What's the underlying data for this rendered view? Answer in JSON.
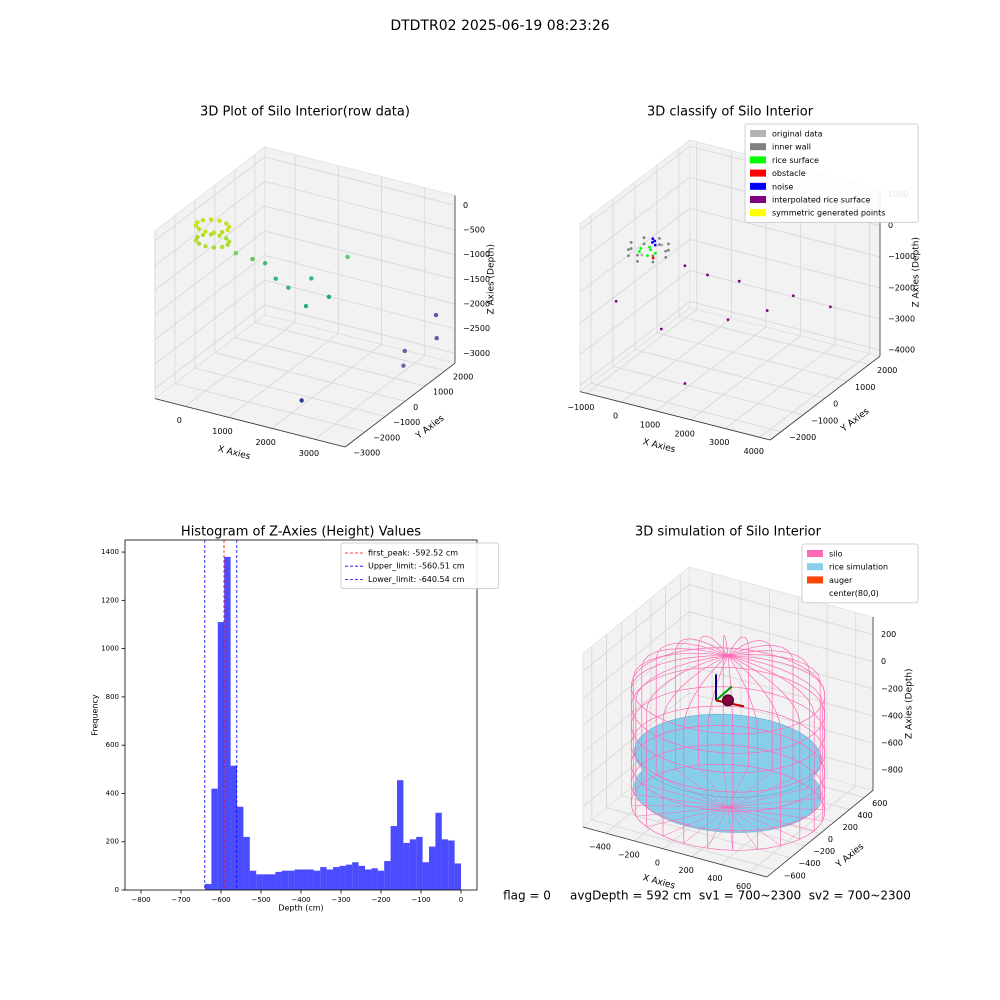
{
  "title": "DTDTR02 2025-06-19 08:23:26",
  "footer": "flag = 0     avgDepth = 592 cm  sv1 = 700~2300  sv2 = 700~2300",
  "chart_data": [
    {
      "type": "scatter3d",
      "title": "3D Plot of Silo Interior(row data)",
      "xlabel": "X Axies",
      "ylabel": "Y Axies",
      "zlabel": "Z Axies (Depth)",
      "xlim": [
        -700,
        3700
      ],
      "ylim": [
        -3000,
        2500
      ],
      "zlim": [
        -3200,
        200
      ],
      "xticks": [
        0,
        1000,
        2000,
        3000
      ],
      "yticks": [
        {
          "value": -3000,
          "label": "−3000"
        },
        {
          "value": -2000,
          "label": "−2000"
        },
        {
          "value": -1000,
          "label": "−1000"
        },
        0,
        1000,
        2000
      ],
      "zticks": [
        {
          "value": -3000,
          "label": "−3000"
        },
        {
          "value": -2500,
          "label": "−2500"
        },
        {
          "value": -2000,
          "label": "−2000"
        },
        {
          "value": -1500,
          "label": "−1500"
        },
        {
          "value": -1000,
          "label": "−1000"
        },
        {
          "value": -500,
          "label": "−500"
        },
        0
      ],
      "series": [
        {
          "x": [
            150,
            103,
            -25,
            -200,
            -375,
            -503,
            -550,
            -503,
            -375,
            -200,
            -25,
            103,
            150,
            103,
            -25,
            -200,
            -375,
            -503,
            -550,
            -503,
            -375,
            -200,
            -25,
            103,
            200,
            400,
            600,
            1000,
            1300,
            800,
            1500,
            1800,
            2000,
            3000,
            3200,
            3400,
            3600,
            2000
          ],
          "y": [
            -1200,
            -1025,
            -897,
            -850,
            -897,
            -1025,
            -1200,
            -1375,
            -1503,
            -1550,
            -1503,
            -1375,
            -1200,
            -1025,
            -897,
            -850,
            -897,
            -1025,
            -1200,
            -1375,
            -1503,
            -1550,
            -1503,
            -1375,
            -900,
            -500,
            -300,
            0,
            500,
            -200,
            -200,
            300,
            800,
            1500,
            1000,
            2200,
            1800,
            -1500
          ],
          "z": [
            -150,
            -150,
            -150,
            -150,
            -150,
            -150,
            -150,
            -150,
            -150,
            -150,
            -150,
            -150,
            -450,
            -450,
            -450,
            -450,
            -450,
            -450,
            -450,
            -450,
            -450,
            -450,
            -450,
            -450,
            -700,
            -900,
            -1000,
            -1500,
            -1400,
            -1300,
            -1700,
            -1600,
            -900,
            -2800,
            -2900,
            -2200,
            -2500,
            -3100
          ],
          "colors": [
            "#d0e11c",
            "#c8e020",
            "#bddf26",
            "#d0e11c",
            "#c8e020",
            "#bddf26",
            "#d0e11c",
            "#c8e020",
            "#bddf26",
            "#d0e11c",
            "#c8e020",
            "#bddf26",
            "#a8db34",
            "#b5de2b",
            "#a8db34",
            "#b5de2b",
            "#a8db34",
            "#b5de2b",
            "#a8db34",
            "#b5de2b",
            "#a8db34",
            "#b5de2b",
            "#a8db34",
            "#b5de2b",
            "#7ad151",
            "#5ec962",
            "#3fbc73",
            "#35b779",
            "#2fb47c",
            "#37b878",
            "#28ae80",
            "#22a884",
            "#5ec962",
            "#6b5ca5",
            "#7465aa",
            "#5a5ba0",
            "#63609f",
            "#2c3e8a"
          ]
        }
      ]
    },
    {
      "type": "scatter3d",
      "title": "3D classify of Silo Interior",
      "xlabel": "X Axies",
      "ylabel": "Y Axies",
      "zlabel": "Z Axies (Depth)",
      "xlim": [
        -1200,
        4300
      ],
      "ylim": [
        -2500,
        2500
      ],
      "zlim": [
        -4200,
        1200
      ],
      "xticks": [
        {
          "value": -1000,
          "label": "−1000"
        },
        0,
        1000,
        2000,
        3000,
        4000
      ],
      "yticks": [
        {
          "value": -2000,
          "label": "−2000"
        },
        {
          "value": -1000,
          "label": "−1000"
        },
        0,
        1000,
        2000
      ],
      "zticks": [
        {
          "value": -4000,
          "label": "−4000"
        },
        {
          "value": -3000,
          "label": "−3000"
        },
        {
          "value": -2000,
          "label": "−2000"
        },
        {
          "value": -1000,
          "label": "−1000"
        },
        0,
        1000
      ],
      "series": [
        {
          "name": "original data",
          "color": "#b3b3b3",
          "x": [
            -300,
            -100
          ],
          "y": [
            -1100,
            -500
          ],
          "z": [
            -300,
            -250
          ]
        },
        {
          "name": "inner wall",
          "color": "#808080",
          "x": [
            200,
            54,
            -300,
            -654,
            -800,
            -654,
            -300,
            54,
            200,
            54,
            -300,
            -654,
            -800,
            -654,
            -300,
            54
          ],
          "y": [
            -800,
            -446,
            -300,
            -446,
            -800,
            -1154,
            -1300,
            -1154,
            -800,
            -446,
            -300,
            -446,
            -800,
            -1154,
            -1300,
            -1154
          ],
          "z": [
            -400,
            -400,
            -400,
            -400,
            -400,
            -400,
            -400,
            -400,
            -200,
            -200,
            -200,
            -200,
            -200,
            -200,
            -200,
            -200
          ]
        },
        {
          "name": "rice surface",
          "color": "#00ff00",
          "x": [
            -500,
            -300,
            -100,
            -400,
            -200,
            -550
          ],
          "y": [
            -900,
            -700,
            -800,
            -600,
            -1000,
            -750
          ],
          "z": [
            -350,
            -350,
            -350,
            -350,
            -350,
            -350
          ]
        },
        {
          "name": "obstacle",
          "color": "#ff0000",
          "x": [
            -100
          ],
          "y": [
            -900
          ],
          "z": [
            -450
          ]
        },
        {
          "name": "noise",
          "color": "#0000ff",
          "x": [
            -250,
            -150,
            -200,
            -300
          ],
          "y": [
            -700,
            -750,
            -650,
            -600
          ],
          "z": [
            -100,
            0,
            -200,
            -50
          ]
        },
        {
          "name": "interpolated rice surface",
          "color": "#800080",
          "x": [
            500,
            900,
            1500,
            2000,
            2500,
            3000,
            3500,
            1200,
            200,
            -600
          ],
          "y": [
            -400,
            0,
            500,
            -800,
            200,
            600,
            1500,
            -1500,
            -1000,
            -1800
          ],
          "z": [
            -800,
            -1200,
            -1500,
            -1900,
            -2000,
            -1600,
            -2300,
            -3800,
            -2600,
            -1500
          ]
        },
        {
          "name": "symmetric generated points",
          "color": "#ffff00",
          "x": [],
          "y": [],
          "z": []
        }
      ]
    },
    {
      "type": "histogram",
      "title": "Histogram of Z-Axies (Height) Values",
      "xlabel": "Depth (cm)",
      "ylabel": "Frequency",
      "color": "#0000ff",
      "alpha": 0.7,
      "bins": [
        -640,
        -624,
        -608,
        -592,
        -576,
        -560,
        -544,
        -528,
        -512,
        -496,
        -480,
        -464,
        -448,
        -432,
        -416,
        -400,
        -384,
        -368,
        -352,
        -336,
        -320,
        -304,
        -288,
        -272,
        -256,
        -240,
        -224,
        -208,
        -192,
        -176,
        -160,
        -144,
        -128,
        -112,
        -96,
        -80,
        -64,
        -48,
        -32,
        -16,
        0
      ],
      "values": [
        25,
        420,
        1110,
        1380,
        515,
        345,
        220,
        80,
        65,
        65,
        65,
        75,
        80,
        80,
        85,
        85,
        85,
        80,
        95,
        85,
        95,
        100,
        105,
        115,
        100,
        85,
        90,
        80,
        120,
        265,
        455,
        195,
        210,
        220,
        115,
        180,
        320,
        210,
        205,
        110
      ],
      "xlim": [
        -840,
        40
      ],
      "ylim": [
        0,
        1450
      ],
      "xticks": [
        {
          "value": -800,
          "label": "−800"
        },
        {
          "value": -700,
          "label": "−700"
        },
        {
          "value": -600,
          "label": "−600"
        },
        {
          "value": -500,
          "label": "−500"
        },
        {
          "value": -400,
          "label": "−400"
        },
        {
          "value": -300,
          "label": "−300"
        },
        {
          "value": -200,
          "label": "−200"
        },
        {
          "value": -100,
          "label": "−100"
        },
        0
      ],
      "yticks": [
        0,
        200,
        400,
        600,
        800,
        1000,
        1200,
        1400
      ],
      "lines": [
        {
          "label": "first_peak: -592.52 cm",
          "value": -592.52,
          "color": "#ff0000"
        },
        {
          "label": "Upper_limit: -560.51 cm",
          "value": -560.51,
          "color": "#0000ff"
        },
        {
          "label": "Lower_limit: -640.54 cm",
          "value": -640.54,
          "color": "#0000ff"
        }
      ]
    },
    {
      "type": "silo3d",
      "title": "3D simulation of Silo Interior",
      "xlabel": "X Axies",
      "ylabel": "Y Axies",
      "zlabel": "Z Axies (Depth)",
      "xlim": [
        -560,
        720
      ],
      "ylim": [
        -720,
        720
      ],
      "zlim": [
        -950,
        330
      ],
      "xticks": [
        {
          "value": -400,
          "label": "−400"
        },
        {
          "value": -200,
          "label": "−200"
        },
        0,
        200,
        400,
        600
      ],
      "yticks": [
        {
          "value": -600,
          "label": "−600"
        },
        {
          "value": -400,
          "label": "−400"
        },
        {
          "value": -200,
          "label": "−200"
        },
        0,
        200,
        400,
        600
      ],
      "zticks": [
        {
          "value": -800,
          "label": "−800"
        },
        {
          "value": -600,
          "label": "−600"
        },
        {
          "value": -400,
          "label": "−400"
        },
        {
          "value": -200,
          "label": "−200"
        },
        0,
        200
      ],
      "silo": {
        "name": "silo",
        "color": "#ff69b4",
        "x": 80,
        "y": 0,
        "radius": 600,
        "zbottom": -940,
        "ztop": -80,
        "zapex": 180
      },
      "rice": {
        "name": "rice simulation",
        "color": "#87ceeb",
        "x": 80,
        "y": 0,
        "radius": 580,
        "z": -560,
        "zbottom": -820
      },
      "auger": {
        "name": "auger",
        "color": "#ff4500",
        "x": 80,
        "y": 0,
        "z": -150
      },
      "center": {
        "name": "center(80,0)",
        "x": 80,
        "y": 0
      }
    }
  ]
}
